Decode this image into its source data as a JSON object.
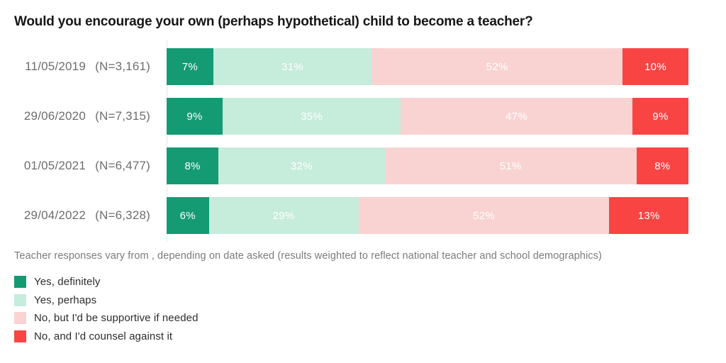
{
  "title": "Would you encourage your own (perhaps hypothetical) child to become a teacher?",
  "caption": "Teacher responses vary from , depending on date asked (results weighted to reflect national teacher and school demographics)",
  "colors": {
    "yes_definitely": "#149b74",
    "yes_perhaps": "#c6ecdc",
    "no_supportive": "#f9d3d2",
    "no_counsel": "#f94444",
    "axis_line": "#e6e6e6",
    "row_label_text": "#6d6d6d",
    "caption_text": "#7b7b7b",
    "segment_label_text": "#ffffff"
  },
  "chart_data": {
    "type": "bar",
    "orientation": "horizontal",
    "stacked": true,
    "unit": "%",
    "title": "Would you encourage your own (perhaps hypothetical) child to become a teacher?",
    "xlabel": "",
    "ylabel": "",
    "xlim": [
      0,
      100
    ],
    "grid": false,
    "value_labels": "inside, white",
    "legend_position": "bottom-left",
    "categories": [
      "11/05/2019",
      "29/06/2020",
      "01/05/2021",
      "29/04/2022"
    ],
    "sample_sizes": [
      "(N=3,161)",
      "(N=7,315)",
      "(N=6,477)",
      "(N=6,328)"
    ],
    "series": [
      {
        "name": "Yes, definitely",
        "color": "#149b74",
        "values": [
          7,
          9,
          8,
          6
        ]
      },
      {
        "name": "Yes, perhaps",
        "color": "#c6ecdc",
        "values": [
          31,
          35,
          32,
          29
        ]
      },
      {
        "name": "No, but I'd be supportive if needed",
        "color": "#f9d3d2",
        "values": [
          52,
          47,
          51,
          52
        ]
      },
      {
        "name": "No, and I'd counsel against it",
        "color": "#f94444",
        "values": [
          10,
          9,
          8,
          13
        ]
      }
    ]
  }
}
